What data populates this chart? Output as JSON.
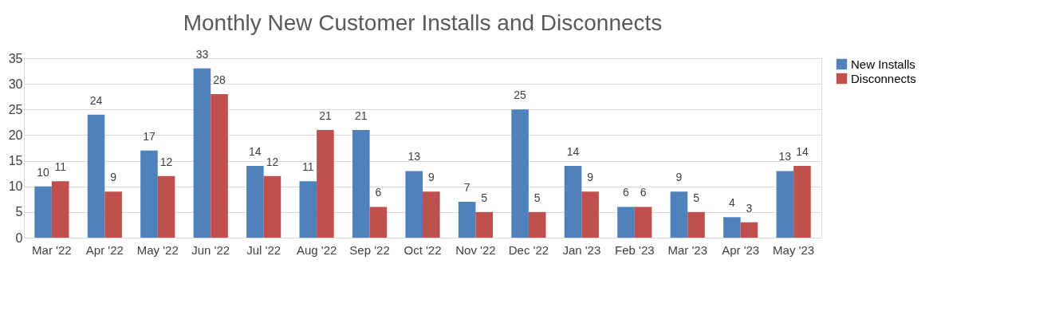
{
  "chart_data": {
    "type": "bar",
    "title": "Monthly New Customer Installs and Disconnects",
    "categories": [
      "Mar '22",
      "Apr '22",
      "May '22",
      "Jun '22",
      "Jul '22",
      "Aug '22",
      "Sep '22",
      "Oct '22",
      "Nov '22",
      "Dec '22",
      "Jan '23",
      "Feb '23",
      "Mar '23",
      "Apr '23",
      "May '23"
    ],
    "series": [
      {
        "name": "New Installs",
        "color": "#4f81bd",
        "values": [
          10,
          24,
          17,
          33,
          14,
          11,
          21,
          13,
          7,
          25,
          14,
          6,
          9,
          4,
          13
        ]
      },
      {
        "name": "Disconnects",
        "color": "#c0504d",
        "values": [
          11,
          9,
          12,
          28,
          12,
          21,
          6,
          9,
          5,
          5,
          9,
          6,
          5,
          3,
          14
        ]
      }
    ],
    "ylim": [
      0,
      35
    ],
    "yticks": [
      0,
      5,
      10,
      15,
      20,
      25,
      30,
      35
    ],
    "grid": "y",
    "legend": "right",
    "data_labels": true
  }
}
